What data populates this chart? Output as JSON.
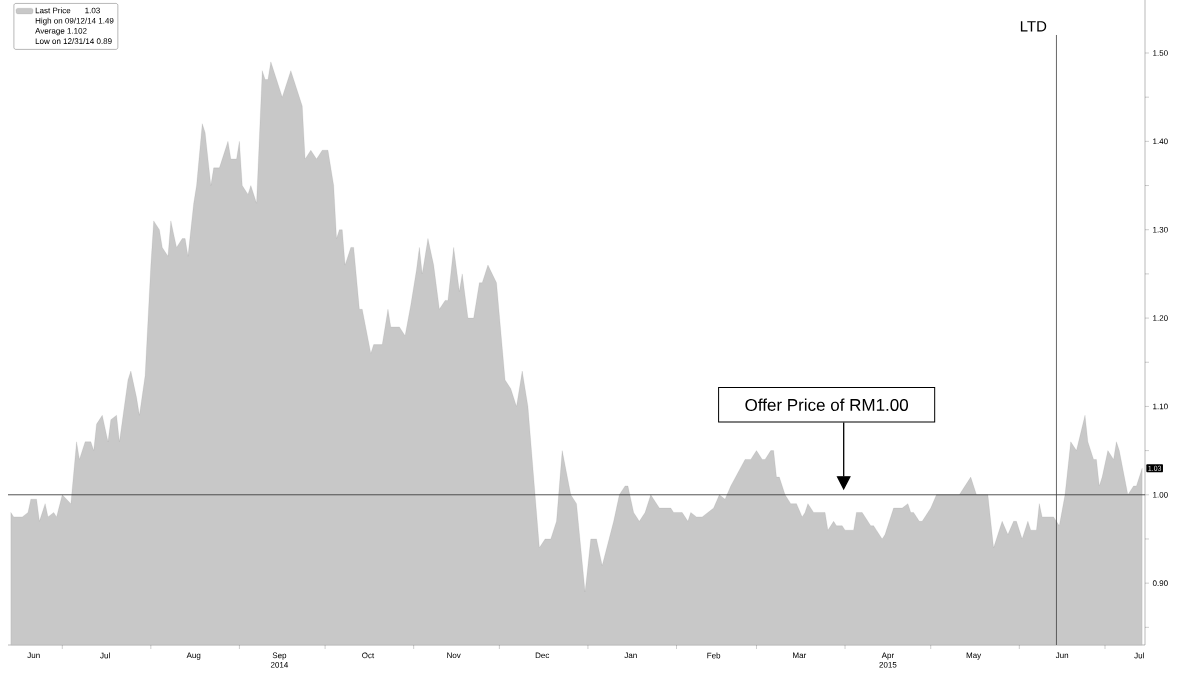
{
  "chart_data": {
    "type": "area",
    "x": [
      "2014-06-13",
      "2014-06-14",
      "2014-06-17",
      "2014-06-19",
      "2014-06-20",
      "2014-06-22",
      "2014-06-23",
      "2014-06-25",
      "2014-06-26",
      "2014-06-28",
      "2014-06-29",
      "2014-07-01",
      "2014-07-04",
      "2014-07-06",
      "2014-07-07",
      "2014-07-09",
      "2014-07-11",
      "2014-07-12",
      "2014-07-13",
      "2014-07-15",
      "2014-07-17",
      "2014-07-18",
      "2014-07-20",
      "2014-07-21",
      "2014-07-24",
      "2014-07-25",
      "2014-07-27",
      "2014-07-28",
      "2014-07-30",
      "2014-08-01",
      "2014-08-02",
      "2014-08-04",
      "2014-08-05",
      "2014-08-07",
      "2014-08-08",
      "2014-08-10",
      "2014-08-12",
      "2014-08-13",
      "2014-08-14",
      "2014-08-16",
      "2014-08-17",
      "2014-08-19",
      "2014-08-20",
      "2014-08-22",
      "2014-08-23",
      "2014-08-25",
      "2014-08-28",
      "2014-08-29",
      "2014-08-31",
      "2014-09-01",
      "2014-09-02",
      "2014-09-04",
      "2014-09-05",
      "2014-09-07",
      "2014-09-09",
      "2014-09-10",
      "2014-09-11",
      "2014-09-12",
      "2014-09-16",
      "2014-09-17",
      "2014-09-19",
      "2014-09-23",
      "2014-09-24",
      "2014-09-26",
      "2014-09-28",
      "2014-09-30",
      "2014-10-02",
      "2014-10-04",
      "2014-10-05",
      "2014-10-06",
      "2014-10-07",
      "2014-10-08",
      "2014-10-10",
      "2014-10-11",
      "2014-10-13",
      "2014-10-14",
      "2014-10-17",
      "2014-10-18",
      "2014-10-21",
      "2014-10-23",
      "2014-10-24",
      "2014-10-27",
      "2014-10-29",
      "2014-10-31",
      "2014-11-02",
      "2014-11-03",
      "2014-11-04",
      "2014-11-06",
      "2014-11-08",
      "2014-11-10",
      "2014-11-12",
      "2014-11-13",
      "2014-11-15",
      "2014-11-17",
      "2014-11-18",
      "2014-11-20",
      "2014-11-22",
      "2014-11-24",
      "2014-11-25",
      "2014-11-27",
      "2014-11-30",
      "2014-12-03",
      "2014-12-05",
      "2014-12-07",
      "2014-12-09",
      "2014-12-11",
      "2014-12-15",
      "2014-12-17",
      "2014-12-19",
      "2014-12-21",
      "2014-12-23",
      "2014-12-26",
      "2014-12-28",
      "2014-12-31",
      "2015-01-02",
      "2015-01-04",
      "2015-01-06",
      "2015-01-10",
      "2015-01-12",
      "2015-01-14",
      "2015-01-15",
      "2015-01-17",
      "2015-01-19",
      "2015-01-21",
      "2015-01-23",
      "2015-01-24",
      "2015-01-26",
      "2015-01-30",
      "2015-01-31",
      "2015-02-03",
      "2015-02-05",
      "2015-02-06",
      "2015-02-08",
      "2015-02-10",
      "2015-02-14",
      "2015-02-16",
      "2015-02-18",
      "2015-02-20",
      "2015-02-25",
      "2015-02-27",
      "2015-03-01",
      "2015-03-03",
      "2015-03-04",
      "2015-03-06",
      "2015-03-07",
      "2015-03-08",
      "2015-03-09",
      "2015-03-11",
      "2015-03-13",
      "2015-03-15",
      "2015-03-17",
      "2015-03-18",
      "2015-03-19",
      "2015-03-21",
      "2015-03-25",
      "2015-03-26",
      "2015-03-28",
      "2015-03-29",
      "2015-03-31",
      "2015-04-01",
      "2015-04-04",
      "2015-04-05",
      "2015-04-07",
      "2015-04-10",
      "2015-04-11",
      "2015-04-12",
      "2015-04-14",
      "2015-04-15",
      "2015-04-18",
      "2015-04-21",
      "2015-04-23",
      "2015-04-24",
      "2015-04-25",
      "2015-04-27",
      "2015-04-28",
      "2015-04-30",
      "2015-05-01",
      "2015-05-03",
      "2015-05-11",
      "2015-05-15",
      "2015-05-17",
      "2015-05-21",
      "2015-05-23",
      "2015-05-26",
      "2015-05-28",
      "2015-05-30",
      "2015-05-31",
      "2015-06-02",
      "2015-06-04",
      "2015-06-05",
      "2015-06-07",
      "2015-06-08",
      "2015-06-09",
      "2015-06-13",
      "2015-06-15",
      "2015-06-17",
      "2015-06-19",
      "2015-06-21",
      "2015-06-24",
      "2015-06-25",
      "2015-06-27",
      "2015-06-28",
      "2015-06-29",
      "2015-06-30",
      "2015-07-02",
      "2015-07-04",
      "2015-07-05",
      "2015-07-06",
      "2015-07-09",
      "2015-07-11",
      "2015-07-12",
      "2015-07-14"
    ],
    "series": [
      {
        "name": "Last Price",
        "color": "#c8c8c8",
        "values": [
          0.98,
          0.975,
          0.975,
          0.98,
          0.995,
          0.995,
          0.97,
          0.99,
          0.975,
          0.98,
          0.975,
          1.0,
          0.99,
          1.06,
          1.04,
          1.06,
          1.06,
          1.05,
          1.08,
          1.09,
          1.06,
          1.085,
          1.09,
          1.06,
          1.13,
          1.14,
          1.11,
          1.09,
          1.135,
          1.26,
          1.31,
          1.3,
          1.28,
          1.27,
          1.31,
          1.28,
          1.29,
          1.29,
          1.27,
          1.33,
          1.35,
          1.42,
          1.41,
          1.35,
          1.37,
          1.37,
          1.4,
          1.38,
          1.38,
          1.4,
          1.35,
          1.34,
          1.35,
          1.33,
          1.48,
          1.47,
          1.47,
          1.49,
          1.45,
          1.46,
          1.48,
          1.44,
          1.38,
          1.39,
          1.38,
          1.39,
          1.39,
          1.35,
          1.29,
          1.3,
          1.3,
          1.26,
          1.28,
          1.28,
          1.21,
          1.21,
          1.16,
          1.17,
          1.17,
          1.21,
          1.19,
          1.19,
          1.18,
          1.215,
          1.255,
          1.28,
          1.25,
          1.29,
          1.26,
          1.21,
          1.22,
          1.22,
          1.28,
          1.23,
          1.25,
          1.2,
          1.2,
          1.24,
          1.24,
          1.26,
          1.24,
          1.13,
          1.12,
          1.1,
          1.14,
          1.1,
          0.94,
          0.95,
          0.95,
          0.97,
          1.05,
          1.0,
          0.99,
          0.89,
          0.95,
          0.95,
          0.92,
          0.97,
          1.0,
          1.01,
          1.01,
          0.98,
          0.97,
          0.98,
          1.0,
          0.995,
          0.985,
          0.985,
          0.98,
          0.98,
          0.97,
          0.98,
          0.975,
          0.975,
          0.985,
          1.0,
          0.995,
          1.01,
          1.04,
          1.04,
          1.05,
          1.04,
          1.04,
          1.05,
          1.05,
          1.02,
          1.02,
          1.0,
          0.99,
          0.99,
          0.975,
          0.98,
          0.99,
          0.98,
          0.98,
          0.96,
          0.97,
          0.965,
          0.965,
          0.96,
          0.96,
          0.98,
          0.98,
          0.965,
          0.965,
          0.96,
          0.95,
          0.955,
          0.985,
          0.985,
          0.99,
          0.98,
          0.98,
          0.97,
          0.97,
          0.98,
          0.985,
          1.0,
          1.0,
          1.02,
          1.0,
          1.0,
          0.94,
          0.97,
          0.955,
          0.97,
          0.97,
          0.95,
          0.97,
          0.96,
          0.96,
          0.99,
          0.975,
          0.975,
          0.965,
          1.0,
          1.06,
          1.05,
          1.09,
          1.06,
          1.04,
          1.04,
          1.01,
          1.02,
          1.05,
          1.04,
          1.06,
          1.05,
          1.0,
          1.01,
          1.01,
          1.03
        ]
      }
    ],
    "xlim": [
      "2014-06-12",
      "2015-07-15"
    ],
    "xticks": [
      {
        "value": "2014-06-21",
        "label": "Jun"
      },
      {
        "value": "2014-07-01",
        "label": null
      },
      {
        "value": "2014-07-16",
        "label": "Jul"
      },
      {
        "value": "2014-08-01",
        "label": null
      },
      {
        "value": "2014-08-16",
        "label": "Aug"
      },
      {
        "value": "2014-09-01",
        "label": null
      },
      {
        "value": "2014-09-15",
        "label": "Sep 2014"
      },
      {
        "value": "2014-10-01",
        "label": null
      },
      {
        "value": "2014-10-16",
        "label": "Oct"
      },
      {
        "value": "2014-11-01",
        "label": null
      },
      {
        "value": "2014-11-15",
        "label": "Nov"
      },
      {
        "value": "2014-12-01",
        "label": null
      },
      {
        "value": "2014-12-16",
        "label": "Dec"
      },
      {
        "value": "2015-01-01",
        "label": null
      },
      {
        "value": "2015-01-16",
        "label": "Jan"
      },
      {
        "value": "2015-02-01",
        "label": null
      },
      {
        "value": "2015-02-14",
        "label": "Feb"
      },
      {
        "value": "2015-03-01",
        "label": null
      },
      {
        "value": "2015-03-16",
        "label": "Mar"
      },
      {
        "value": "2015-04-01",
        "label": null
      },
      {
        "value": "2015-04-16",
        "label": "Apr 2015"
      },
      {
        "value": "2015-05-01",
        "label": null
      },
      {
        "value": "2015-05-16",
        "label": "May"
      },
      {
        "value": "2015-06-01",
        "label": null
      },
      {
        "value": "2015-06-16",
        "label": "Jun"
      },
      {
        "value": "2015-07-01",
        "label": null
      },
      {
        "value": "2015-07-13",
        "label": "Jul"
      }
    ],
    "ylim": [
      0.83,
      1.56
    ],
    "yticks": [
      {
        "value": 0.85,
        "label": null
      },
      {
        "value": 0.9,
        "label": "0.90"
      },
      {
        "value": 0.95,
        "label": null
      },
      {
        "value": 1.0,
        "label": "1.00"
      },
      {
        "value": 1.05,
        "label": null
      },
      {
        "value": 1.1,
        "label": "1.10"
      },
      {
        "value": 1.15,
        "label": null
      },
      {
        "value": 1.2,
        "label": "1.20"
      },
      {
        "value": 1.25,
        "label": null
      },
      {
        "value": 1.3,
        "label": "1.30"
      },
      {
        "value": 1.35,
        "label": null
      },
      {
        "value": 1.4,
        "label": "1.40"
      },
      {
        "value": 1.45,
        "label": null
      },
      {
        "value": 1.5,
        "label": "1.50"
      }
    ],
    "ref_lines": [
      {
        "axis": "y",
        "value": 1.0,
        "color": "#404040"
      },
      {
        "axis": "x",
        "value": "2015-06-14",
        "label": "LTD",
        "color": "#404040"
      }
    ],
    "annotations": [
      "Offer Price of RM1.00",
      {
        "text": "1.03",
        "x": "2015-07-14",
        "y": 1.03
      },
      "1.03",
      "High on 09/12/14 1.49",
      "Average 1.102",
      "Low on 12/31/14 0.89"
    ],
    "legend": "top left"
  }
}
